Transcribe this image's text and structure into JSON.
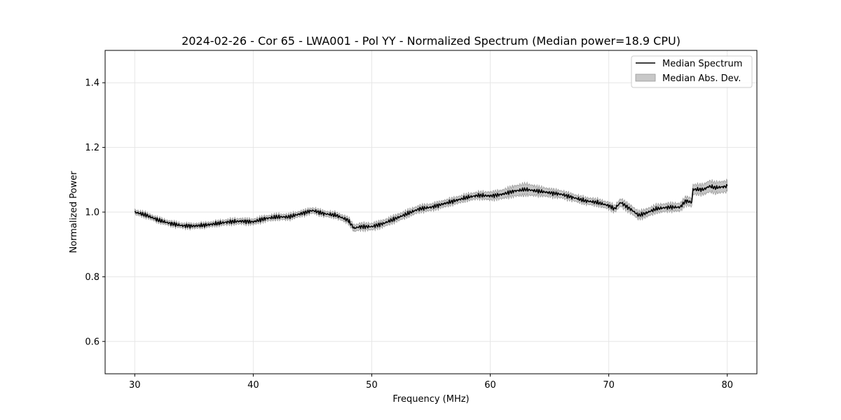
{
  "chart_data": {
    "type": "line",
    "title": "2024-02-26 - Cor 65 - LWA001 - Pol YY - Normalized Spectrum (Median power=18.9 CPU)",
    "xlabel": "Frequency (MHz)",
    "ylabel": "Normalized Power",
    "xlim": [
      27.5,
      82.5
    ],
    "ylim": [
      0.5,
      1.5
    ],
    "xticks": [
      30,
      40,
      50,
      60,
      70,
      80
    ],
    "yticks": [
      0.6,
      0.8,
      1.0,
      1.2,
      1.4
    ],
    "xtick_labels": [
      "30",
      "40",
      "50",
      "60",
      "70",
      "80"
    ],
    "ytick_labels": [
      "0.6",
      "0.8",
      "1.0",
      "1.2",
      "1.4"
    ],
    "grid": true,
    "legend_position": "top-right",
    "legend": [
      "Median Spectrum",
      "Median Abs. Dev."
    ],
    "series": [
      {
        "name": "Median Spectrum",
        "color": "#000000",
        "x": [
          30,
          31,
          32,
          33,
          34,
          35,
          36,
          37,
          38,
          39,
          40,
          41,
          42,
          43,
          44,
          45,
          46,
          47,
          48,
          48.5,
          49,
          50,
          51,
          52,
          53,
          54,
          55,
          56,
          57,
          58,
          59,
          60,
          61,
          62,
          63,
          64,
          65,
          66,
          67,
          68,
          69,
          70,
          70.5,
          71,
          72,
          72.5,
          73,
          74,
          75,
          76,
          76.5,
          77,
          77.1,
          78,
          78.5,
          79,
          80
        ],
        "values": [
          1.0,
          0.99,
          0.975,
          0.965,
          0.958,
          0.957,
          0.96,
          0.965,
          0.97,
          0.972,
          0.97,
          0.98,
          0.985,
          0.985,
          0.995,
          1.005,
          0.995,
          0.99,
          0.975,
          0.95,
          0.955,
          0.955,
          0.965,
          0.98,
          0.995,
          1.01,
          1.015,
          1.025,
          1.035,
          1.045,
          1.052,
          1.05,
          1.055,
          1.065,
          1.07,
          1.065,
          1.06,
          1.055,
          1.045,
          1.035,
          1.03,
          1.02,
          1.01,
          1.03,
          1.005,
          0.99,
          0.995,
          1.01,
          1.015,
          1.015,
          1.035,
          1.03,
          1.07,
          1.07,
          1.08,
          1.075,
          1.08
        ],
        "mad": [
          0.007,
          0.007,
          0.007,
          0.007,
          0.007,
          0.007,
          0.007,
          0.007,
          0.008,
          0.008,
          0.008,
          0.008,
          0.008,
          0.008,
          0.008,
          0.008,
          0.008,
          0.008,
          0.009,
          0.01,
          0.01,
          0.01,
          0.01,
          0.01,
          0.01,
          0.01,
          0.01,
          0.01,
          0.01,
          0.01,
          0.01,
          0.012,
          0.013,
          0.016,
          0.018,
          0.014,
          0.012,
          0.011,
          0.01,
          0.01,
          0.01,
          0.01,
          0.01,
          0.012,
          0.012,
          0.012,
          0.012,
          0.012,
          0.012,
          0.012,
          0.013,
          0.013,
          0.015,
          0.016,
          0.017,
          0.017,
          0.017
        ]
      }
    ]
  }
}
